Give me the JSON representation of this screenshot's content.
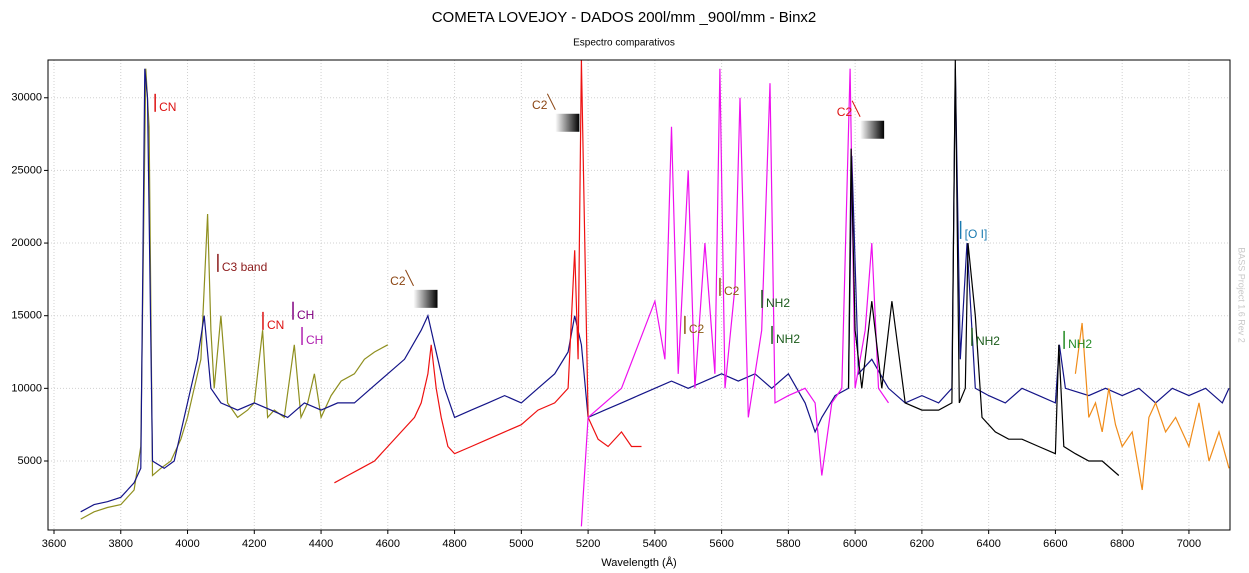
{
  "chart_data": {
    "type": "line",
    "title": "COMETA LOVEJOY - DADOS 200l/mm _900l/mm - Binx2",
    "subtitle": "Espectro comparativos",
    "x_label": "Wavelength (Å)",
    "watermark": "BASS Project 1.6 Rev 2",
    "xlim": [
      3582,
      7123
    ],
    "xticks": [
      3600,
      3800,
      4000,
      4200,
      4400,
      4600,
      4800,
      5000,
      5200,
      5400,
      5600,
      5800,
      6000,
      6200,
      6400,
      6600,
      6800,
      7000
    ],
    "ylim": [
      250,
      32600
    ],
    "yticks": [
      5000,
      10000,
      15000,
      20000,
      25000,
      30000
    ],
    "grid": true,
    "series": [
      {
        "color": "#8f8f1f",
        "x": [
          3680,
          3720,
          3760,
          3800,
          3840,
          3860,
          3875,
          3885,
          3895,
          3920,
          3950,
          3980,
          4000,
          4020,
          4040,
          4060,
          4070,
          4080,
          4100,
          4120,
          4150,
          4180,
          4200,
          4225,
          4240,
          4260,
          4290,
          4320,
          4340,
          4360,
          4380,
          4400,
          4430,
          4460,
          4500,
          4530,
          4560,
          4600
        ],
        "values": [
          1000,
          1500,
          1800,
          2000,
          3000,
          6000,
          32000,
          28000,
          4000,
          4500,
          5000,
          6500,
          8000,
          10000,
          12000,
          22000,
          14000,
          10000,
          15000,
          9000,
          8000,
          8500,
          9000,
          14000,
          8000,
          8500,
          8000,
          13000,
          8000,
          9000,
          11000,
          8000,
          9500,
          10500,
          11000,
          12000,
          12500,
          13000
        ]
      },
      {
        "color": "#141488",
        "x": [
          3680,
          3720,
          3760,
          3800,
          3840,
          3860,
          3872,
          3880,
          3895,
          3930,
          3960,
          4000,
          4030,
          4050,
          4070,
          4100,
          4150,
          4200,
          4250,
          4300,
          4350,
          4400,
          4450,
          4500,
          4550,
          4600,
          4650,
          4700,
          4720,
          4740,
          4770,
          4800,
          4850,
          4900,
          4950,
          5000,
          5050,
          5100,
          5140,
          5160,
          5180,
          5200,
          5250,
          5300,
          5350,
          5400,
          5450,
          5500,
          5550,
          5600,
          5650,
          5700,
          5750,
          5800,
          5850,
          5880,
          5900,
          5940,
          5980,
          5990,
          6010,
          6050,
          6100,
          6150,
          6200,
          6250,
          6290,
          6300,
          6315,
          6335,
          6360,
          6400,
          6450,
          6500,
          6550,
          6600,
          6612,
          6630,
          6700,
          6750,
          6800,
          6850,
          6900,
          6950,
          7000,
          7050,
          7100,
          7120
        ],
        "values": [
          1500,
          2000,
          2200,
          2500,
          3500,
          4500,
          32000,
          30000,
          5000,
          4500,
          5000,
          9000,
          12000,
          15000,
          10000,
          9000,
          8500,
          9000,
          8500,
          8000,
          9000,
          8500,
          9000,
          9000,
          10000,
          11000,
          12000,
          14000,
          15000,
          13000,
          10000,
          8000,
          8500,
          9000,
          9500,
          9000,
          10000,
          11000,
          12500,
          15000,
          13000,
          8000,
          8500,
          9000,
          9500,
          10000,
          10500,
          10000,
          10500,
          11000,
          10500,
          11000,
          10000,
          11000,
          9000,
          7000,
          8000,
          9500,
          10000,
          26000,
          11000,
          12000,
          10000,
          9000,
          9500,
          9000,
          10000,
          32000,
          12000,
          20000,
          10000,
          9500,
          9000,
          10000,
          9500,
          9000,
          13000,
          10000,
          9500,
          10000,
          9500,
          10000,
          9000,
          10000,
          9500,
          10000,
          9000,
          10000
        ]
      },
      {
        "color": "#ee1111",
        "x": [
          4440,
          4480,
          4520,
          4560,
          4600,
          4640,
          4680,
          4700,
          4720,
          4730,
          4745,
          4760,
          4780,
          4800,
          4850,
          4900,
          4950,
          5000,
          5050,
          5100,
          5140,
          5160,
          5170,
          5180,
          5190,
          5200,
          5230,
          5260,
          5300,
          5330,
          5360
        ],
        "values": [
          3500,
          4000,
          4500,
          5000,
          6000,
          7000,
          8000,
          9000,
          11000,
          13000,
          10000,
          8000,
          6000,
          5500,
          6000,
          6500,
          7000,
          7500,
          8500,
          9000,
          10000,
          19500,
          12000,
          32600,
          20000,
          8000,
          6500,
          6000,
          7000,
          6000,
          6000
        ],
        "clip": true
      },
      {
        "color": "#ee10ee",
        "x": [
          5180,
          5185,
          5200,
          5250,
          5300,
          5350,
          5400,
          5430,
          5450,
          5470,
          5500,
          5520,
          5550,
          5580,
          5595,
          5610,
          5640,
          5655,
          5680,
          5720,
          5745,
          5760,
          5800,
          5850,
          5880,
          5900,
          5930,
          5960,
          5985,
          6000,
          6030,
          6050,
          6070,
          6100
        ],
        "values": [
          500,
          2500,
          8000,
          9000,
          10000,
          13000,
          16000,
          12000,
          28000,
          11000,
          25000,
          10000,
          20000,
          11000,
          32000,
          10000,
          17000,
          30000,
          8000,
          14000,
          31000,
          9000,
          9500,
          10000,
          9000,
          4000,
          9000,
          10000,
          32000,
          10000,
          14000,
          20000,
          10000,
          9000
        ]
      },
      {
        "color": "#000000",
        "x": [
          5980,
          5988,
          6000,
          6020,
          6050,
          6080,
          6110,
          6150,
          6200,
          6250,
          6290,
          6300,
          6312,
          6330,
          6338,
          6360,
          6380,
          6420,
          6460,
          6500,
          6550,
          6600,
          6610,
          6625,
          6660,
          6700,
          6740,
          6790
        ],
        "values": [
          10000,
          26500,
          14000,
          10000,
          16000,
          10000,
          16000,
          9000,
          8500,
          8500,
          9000,
          32600,
          9000,
          10000,
          20000,
          15000,
          8000,
          7000,
          6500,
          6500,
          6000,
          5500,
          13000,
          6000,
          5500,
          5000,
          5000,
          4000
        ]
      },
      {
        "color": "#f08c1a",
        "x": [
          6660,
          6680,
          6700,
          6720,
          6740,
          6760,
          6780,
          6800,
          6830,
          6860,
          6880,
          6900,
          6930,
          6960,
          7000,
          7030,
          7060,
          7090,
          7120
        ],
        "values": [
          11000,
          14500,
          8000,
          9000,
          7000,
          10000,
          7500,
          6000,
          7000,
          3000,
          8000,
          9000,
          7000,
          8000,
          6000,
          9000,
          5000,
          7000,
          4500
        ]
      }
    ],
    "annotations": [
      {
        "text": "CN",
        "x": 3903,
        "y": 29310,
        "color": "#dd1111"
      },
      {
        "text": "C3 band",
        "x": 4091,
        "y": 18290,
        "color": "#8b1a1a"
      },
      {
        "text": "CN",
        "x": 4226,
        "y": 14300,
        "color": "#dd1111"
      },
      {
        "text": "CH",
        "x": 4316,
        "y": 15000,
        "color": "#800080"
      },
      {
        "text": "CH",
        "x": 4343,
        "y": 13260,
        "color": "#b020b0"
      },
      {
        "text": "C2",
        "x": 4665,
        "y": 17330,
        "color": "#8b4513",
        "flag": true
      },
      {
        "text": "C2",
        "x": 5090,
        "y": 29450,
        "color": "#8b4513",
        "flag": true
      },
      {
        "text": "C2",
        "x": 6003,
        "y": 28970,
        "color": "#dd1111",
        "flag": true
      },
      {
        "text": "C2",
        "x": 5595,
        "y": 16640,
        "color": "#8b5a13"
      },
      {
        "text": "C2",
        "x": 5490,
        "y": 14020,
        "color": "#8b5a13"
      },
      {
        "text": "NH2",
        "x": 5721,
        "y": 15810,
        "color": "#1a5b1a"
      },
      {
        "text": "NH2",
        "x": 5751,
        "y": 13330,
        "color": "#1a5b1a"
      },
      {
        "text": "[O I]",
        "x": 6316,
        "y": 20560,
        "color": "#1a7ab0"
      },
      {
        "text": "NH2",
        "x": 6350,
        "y": 13200,
        "color": "#1a5b1a"
      },
      {
        "text": "NH2",
        "x": 6626,
        "y": 12990,
        "color": "#228b22"
      }
    ]
  }
}
